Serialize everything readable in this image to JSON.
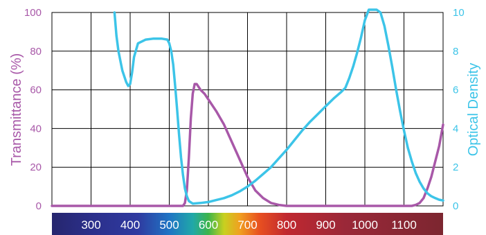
{
  "chart_data": {
    "type": "line",
    "xlabel": "",
    "xlim": [
      200,
      1200
    ],
    "x_ticks": [
      "300",
      "400",
      "500",
      "600",
      "700",
      "800",
      "900",
      "1000",
      "1100"
    ],
    "x_tick_values": [
      300,
      400,
      500,
      600,
      700,
      800,
      900,
      1000,
      1100
    ],
    "grid": true,
    "colorbar": "wavelength spectrum bar below x-axis (violet to red)",
    "y_left": {
      "label": "Transmittance (%)",
      "lim": [
        0,
        100
      ],
      "ticks": [
        "0",
        "20",
        "40",
        "60",
        "80",
        "100"
      ],
      "color": "#a858a8"
    },
    "y_right": {
      "label": "Optical Density",
      "lim": [
        0,
        10
      ],
      "ticks": [
        "0",
        "2",
        "4",
        "6",
        "8",
        "10"
      ],
      "color": "#3cc4e8"
    },
    "series": [
      {
        "axis": "left",
        "color": "#a858a8",
        "x": [
          200,
          300,
          400,
          500,
          535,
          540,
          545,
          550,
          555,
          560,
          565,
          570,
          580,
          590,
          600,
          620,
          640,
          660,
          680,
          700,
          720,
          740,
          760,
          780,
          800,
          850,
          900,
          950,
          1000,
          1050,
          1100,
          1120,
          1130,
          1140,
          1150,
          1160,
          1170,
          1180,
          1190,
          1200
        ],
        "y": [
          0,
          0,
          0,
          0,
          0,
          1.5,
          8,
          25,
          45,
          58,
          63,
          63,
          60,
          58,
          55,
          49,
          42,
          33,
          24,
          15,
          8,
          4,
          1.5,
          0.5,
          0,
          0,
          0,
          0,
          0,
          0,
          0,
          0,
          0.5,
          1.5,
          4,
          9,
          15,
          23,
          31,
          42
        ]
      },
      {
        "axis": "right",
        "color": "#3cc4e8",
        "x": [
          360,
          365,
          370,
          375,
          380,
          390,
          395,
          400,
          405,
          410,
          420,
          440,
          460,
          480,
          495,
          500,
          505,
          510,
          515,
          520,
          525,
          530,
          535,
          540,
          545,
          550,
          560,
          580,
          600,
          620,
          640,
          660,
          680,
          700,
          720,
          740,
          760,
          780,
          800,
          820,
          840,
          860,
          880,
          900,
          920,
          940,
          950,
          960,
          970,
          980,
          990,
          1000,
          1010,
          1020,
          1030,
          1040,
          1050,
          1060,
          1070,
          1080,
          1090,
          1100,
          1110,
          1120,
          1130,
          1140,
          1150,
          1160,
          1170,
          1180,
          1190,
          1200
        ],
        "y": [
          10,
          8.8,
          8,
          7.5,
          7.0,
          6.4,
          6.2,
          6.3,
          6.9,
          7.7,
          8.4,
          8.6,
          8.65,
          8.65,
          8.6,
          8.4,
          8.0,
          7.3,
          6.2,
          5.0,
          3.7,
          2.5,
          1.6,
          0.9,
          0.5,
          0.25,
          0.12,
          0.15,
          0.2,
          0.3,
          0.4,
          0.55,
          0.75,
          1.0,
          1.3,
          1.65,
          2.0,
          2.45,
          2.9,
          3.4,
          3.9,
          4.35,
          4.75,
          5.15,
          5.55,
          5.9,
          6.1,
          6.6,
          7.2,
          7.9,
          8.7,
          9.6,
          10.2,
          10.3,
          10.2,
          10,
          9.3,
          8.3,
          7.2,
          6.0,
          4.9,
          3.9,
          3.0,
          2.3,
          1.7,
          1.25,
          0.9,
          0.65,
          0.5,
          0.4,
          0.32,
          0.28
        ]
      }
    ]
  }
}
